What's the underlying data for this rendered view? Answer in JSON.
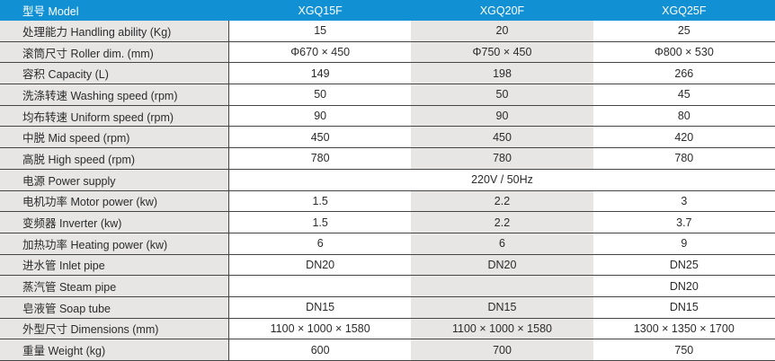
{
  "ui": {
    "colors": {
      "header_bg": "#1191d3",
      "header_text": "#ffffff",
      "shaded_column_bg": "#e7e6e5",
      "label_column_bg": "#e7e6e5",
      "row_border": "#454545",
      "body_text": "#2b2b2b"
    }
  },
  "chart_data": {
    "type": "table",
    "title": "",
    "columns": [
      "型号 Model",
      "XGQ15F",
      "XGQ20F",
      "XGQ25F"
    ],
    "highlight_column": "XGQ20F",
    "rows": [
      {
        "label": "处理能力 Handling ability (Kg)",
        "values": [
          "15",
          "20",
          "25"
        ]
      },
      {
        "label": "滚筒尺寸 Roller dim. (mm)",
        "values": [
          "Φ670 × 450",
          "Φ750 × 450",
          "Φ800 × 530"
        ]
      },
      {
        "label": "容积 Capacity (L)",
        "values": [
          "149",
          "198",
          "266"
        ]
      },
      {
        "label": "洗涤转速 Washing speed (rpm)",
        "values": [
          "50",
          "50",
          "45"
        ]
      },
      {
        "label": "均布转速 Uniform speed (rpm)",
        "values": [
          "90",
          "90",
          "80"
        ]
      },
      {
        "label": "中脱 Mid speed (rpm)",
        "values": [
          "450",
          "450",
          "420"
        ]
      },
      {
        "label": "高脱 High speed (rpm)",
        "values": [
          "780",
          "780",
          "780"
        ]
      },
      {
        "label": "电源 Power supply",
        "span": "220V / 50Hz"
      },
      {
        "label": "电机功率 Motor power (kw)",
        "values": [
          "1.5",
          "2.2",
          "3"
        ]
      },
      {
        "label": "变频器 Inverter (kw)",
        "values": [
          "1.5",
          "2.2",
          "3.7"
        ]
      },
      {
        "label": "加热功率 Heating power (kw)",
        "values": [
          "6",
          "6",
          "9"
        ]
      },
      {
        "label": "进水管 Inlet pipe",
        "values": [
          "DN20",
          "DN20",
          "DN25"
        ]
      },
      {
        "label": "蒸汽管 Steam pipe",
        "values": [
          "",
          "",
          "DN20"
        ]
      },
      {
        "label": "皂液管 Soap tube",
        "values": [
          "DN15",
          "DN15",
          "DN15"
        ]
      },
      {
        "label": "外型尺寸 Dimensions (mm)",
        "values": [
          "1100 × 1000 × 1580",
          "1100 × 1000 × 1580",
          "1300 × 1350 × 1700"
        ]
      },
      {
        "label": "重量 Weight (kg)",
        "values": [
          "600",
          "700",
          "750"
        ]
      }
    ]
  }
}
